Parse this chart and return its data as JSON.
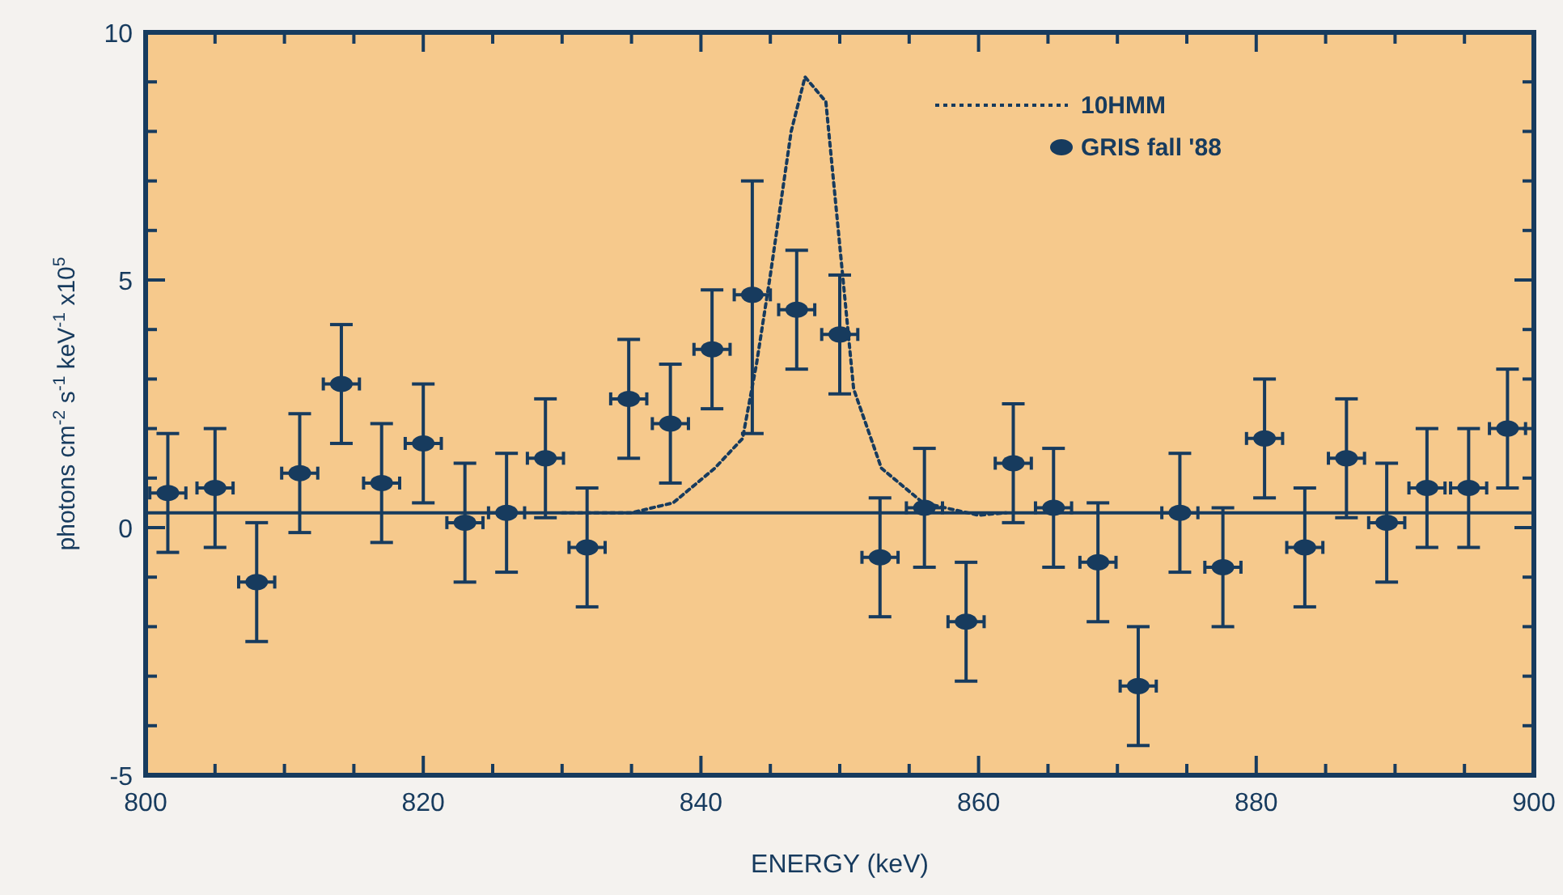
{
  "chart_data": {
    "type": "scatter",
    "xlabel": "ENERGY  (keV)",
    "ylabel": "photons cm$^{-2}$ s$^{-1}$ keV$^{-1}$ x10$^{5}$",
    "xlim": [
      800,
      900
    ],
    "ylim": [
      -5,
      10
    ],
    "xticks": [
      800,
      {
        "value": 805,
        "label": null
      },
      {
        "value": 810,
        "label": null
      },
      {
        "value": 815,
        "label": null
      },
      820,
      {
        "value": 825,
        "label": null
      },
      {
        "value": 830,
        "label": null
      },
      {
        "value": 835,
        "label": null
      },
      840,
      {
        "value": 845,
        "label": null
      },
      {
        "value": 850,
        "label": null
      },
      {
        "value": 855,
        "label": null
      },
      860,
      {
        "value": 865,
        "label": null
      },
      {
        "value": 870,
        "label": null
      },
      {
        "value": 875,
        "label": null
      },
      880,
      {
        "value": 885,
        "label": null
      },
      {
        "value": 890,
        "label": null
      },
      {
        "value": 895,
        "label": null
      },
      900
    ],
    "yticks": [
      -5,
      {
        "value": -4,
        "label": null
      },
      {
        "value": -3,
        "label": null
      },
      {
        "value": -2,
        "label": null
      },
      {
        "value": -1,
        "label": null
      },
      0,
      {
        "value": 1,
        "label": null
      },
      {
        "value": 2,
        "label": null
      },
      {
        "value": 3,
        "label": null
      },
      {
        "value": 4,
        "label": null
      },
      5,
      {
        "value": 6,
        "label": null
      },
      {
        "value": 7,
        "label": null
      },
      {
        "value": 8,
        "label": null
      },
      {
        "value": 9,
        "label": null
      },
      10
    ],
    "grid": false,
    "legend": "top right",
    "series": [
      {
        "type": "line",
        "color": "#173b5e",
        "line_style": "solid",
        "x": [
          800,
          900
        ],
        "values": [
          0.3,
          0.3
        ]
      },
      {
        "type": "line",
        "name": "10HMM",
        "color": "#173b5e",
        "line_style": "dotted",
        "x": [
          830,
          835,
          838,
          841,
          843,
          844,
          845,
          846.5,
          847.5,
          849,
          850,
          851,
          853,
          856,
          860,
          862
        ],
        "values": [
          0.3,
          0.3,
          0.5,
          1.2,
          1.8,
          3.3,
          5.1,
          8.0,
          9.1,
          8.6,
          5.7,
          2.8,
          1.2,
          0.5,
          0.25,
          0.3
        ]
      },
      {
        "name": "GRIS fall '88",
        "color": "#173b5e",
        "marker": "circle",
        "x": [
          801.6,
          805.0,
          808.0,
          811.1,
          814.1,
          817.0,
          820.0,
          823.0,
          826.0,
          828.8,
          831.8,
          834.8,
          837.8,
          840.8,
          843.7,
          846.9,
          850.0,
          852.9,
          856.1,
          859.1,
          862.5,
          865.4,
          868.6,
          871.5,
          874.5,
          877.6,
          880.6,
          883.5,
          886.5,
          889.4,
          892.3,
          895.3,
          898.1
        ],
        "values": [
          0.7,
          0.8,
          -1.1,
          1.1,
          2.9,
          0.9,
          1.7,
          0.1,
          0.3,
          1.4,
          -0.4,
          2.6,
          2.1,
          3.6,
          4.7,
          4.4,
          3.9,
          -0.6,
          0.4,
          -1.9,
          1.3,
          0.4,
          -0.7,
          -3.2,
          0.3,
          -0.8,
          1.8,
          -0.4,
          1.4,
          0.1,
          0.8,
          0.8,
          2.0
        ],
        "errors": [
          1.2,
          1.2,
          1.2,
          1.2,
          1.2,
          1.2,
          1.2,
          1.2,
          1.2,
          1.2,
          1.2,
          1.2,
          1.2,
          1.2,
          [
            1.9,
            7.0
          ],
          1.2,
          1.2,
          1.2,
          1.2,
          1.2,
          1.2,
          1.2,
          1.2,
          1.2,
          1.2,
          1.2,
          1.2,
          1.2,
          1.2,
          1.2,
          1.2,
          1.2,
          1.2
        ],
        "xerrors": [
          1.3,
          1.3,
          1.3,
          1.3,
          1.3,
          1.3,
          1.3,
          1.3,
          1.3,
          1.3,
          1.3,
          1.3,
          1.3,
          1.3,
          1.3,
          1.3,
          1.3,
          1.3,
          1.3,
          1.3,
          1.3,
          1.3,
          1.3,
          1.3,
          1.3,
          1.3,
          1.3,
          1.3,
          1.3,
          1.3,
          1.3,
          1.3,
          1.3
        ]
      }
    ]
  }
}
